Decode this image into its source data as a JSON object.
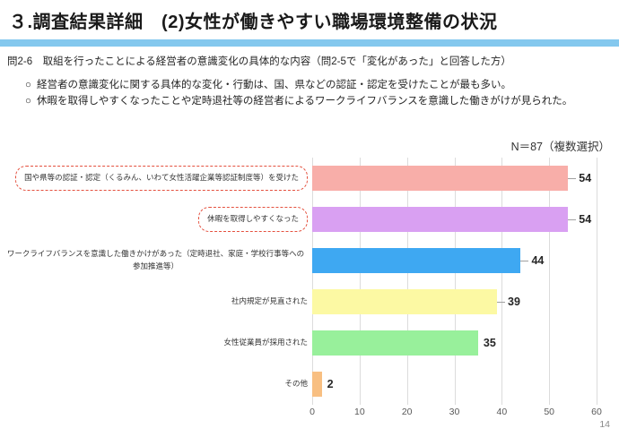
{
  "slide": {
    "title": "３.調査結果詳細　(2)女性が働きやすい職場環境整備の状況",
    "question": "問2-6　取組を行ったことによる経営者の意識変化の具体的な内容（問2-5で「変化があった」と回答した方）",
    "bullet_marker": "○",
    "bullets": [
      "経営者の意識変化に関する具体的な変化・行動は、国、県などの認証・認定を受けたことが最も多い。",
      "休暇を取得しやすくなったことや定時退社等の経営者によるワークライフバランスを意識した働きがけが見られた。"
    ],
    "accent_bar_color": "#84C8EE",
    "page_number": "14"
  },
  "chart_data": {
    "type": "bar",
    "orientation": "horizontal",
    "title": "",
    "n_label": "N＝87（複数選択）",
    "categories": [
      "国や県等の認証・認定（くるみん、いわて女性活躍企業等認証制度等）を受けた",
      "休暇を取得しやすくなった",
      "ワークライフバランスを意識した働きかけがあった（定時退社、家庭・学校行事等への参加推進等）",
      "社内規定が見直された",
      "女性従業員が採用された",
      "その他"
    ],
    "values": [
      54,
      54,
      44,
      39,
      35,
      2
    ],
    "value_labels": [
      "54",
      "54",
      "44",
      "39",
      "35",
      "2"
    ],
    "colors": [
      "#F8AEA9",
      "#D9A0F2",
      "#3EA8F2",
      "#FCF9A3",
      "#98F09B",
      "#F8BF82"
    ],
    "highlighted_categories": [
      0,
      1
    ],
    "highlight_style": "red-dashed-box",
    "xlim": [
      0,
      60
    ],
    "x_ticks": [
      "0",
      "10",
      "20",
      "30",
      "40",
      "50",
      "60"
    ],
    "grid": true,
    "gridline_color": "#dcdcdc"
  }
}
